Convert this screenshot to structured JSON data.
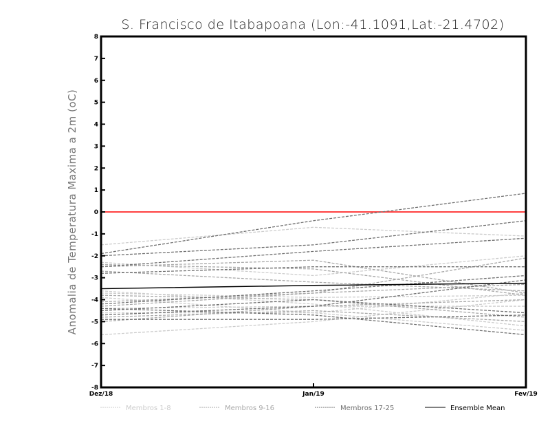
{
  "chart_data": {
    "type": "line",
    "title": "S. Francisco de Itabapoana (Lon:-41.1091,Lat:-21.4702)",
    "xlabel": "",
    "ylabel": "Anomalia de Temperatura Maxima a 2m (oC)",
    "categories": [
      "Dez/18",
      "Jan/19",
      "Fev/19"
    ],
    "ylim": [
      -8,
      8
    ],
    "yticks": [
      "8",
      "7",
      "6",
      "5",
      "4",
      "3",
      "2",
      "1",
      "0",
      "-1",
      "-2",
      "-3",
      "-4",
      "-5",
      "-6",
      "-7",
      "-8"
    ],
    "reference_line": {
      "value": 0,
      "color": "#ff4040"
    },
    "groups": [
      {
        "name": "Membros 1-8",
        "color": "#cccccc",
        "style": "dashed",
        "series": [
          [
            -1.5,
            -0.7,
            -1.1
          ],
          [
            -5.6,
            -5.0,
            -4.0
          ],
          [
            -3.6,
            -4.2,
            -5.2
          ],
          [
            -4.4,
            -4.3,
            -4.3
          ],
          [
            -3.7,
            -3.9,
            -3.8
          ],
          [
            -2.3,
            -2.9,
            -2.0
          ],
          [
            -4.6,
            -4.6,
            -5.4
          ],
          [
            -3.9,
            -4.6,
            -3.7
          ]
        ]
      },
      {
        "name": "Membros 9-16",
        "color": "#a8a8a8",
        "style": "dashed",
        "series": [
          [
            -2.4,
            -2.6,
            -3.8
          ],
          [
            -4.1,
            -3.7,
            -2.1
          ],
          [
            -5.0,
            -4.3,
            -4.0
          ],
          [
            -3.8,
            -4.0,
            -4.8
          ],
          [
            -2.7,
            -3.2,
            -3.6
          ],
          [
            -4.3,
            -3.7,
            -3.3
          ],
          [
            -4.8,
            -4.5,
            -5.0
          ],
          [
            -2.5,
            -2.2,
            -3.7
          ]
        ]
      },
      {
        "name": "Membros 17-25",
        "color": "#707070",
        "style": "dashed",
        "series": [
          [
            -1.9,
            -0.4,
            0.85
          ],
          [
            -2.0,
            -1.5,
            -0.4
          ],
          [
            -2.5,
            -1.8,
            -1.2
          ],
          [
            -2.8,
            -2.5,
            -2.5
          ],
          [
            -4.2,
            -3.6,
            -2.9
          ],
          [
            -4.5,
            -4.0,
            -4.6
          ],
          [
            -4.9,
            -4.9,
            -4.7
          ],
          [
            -4.4,
            -4.7,
            -5.6
          ],
          [
            -4.7,
            -4.3,
            -3.1
          ]
        ]
      }
    ],
    "ensemble_mean": {
      "name": "Ensemble Mean",
      "color": "#000000",
      "values": [
        -3.5,
        -3.35,
        -3.25
      ]
    },
    "legend_position": "bottom"
  }
}
